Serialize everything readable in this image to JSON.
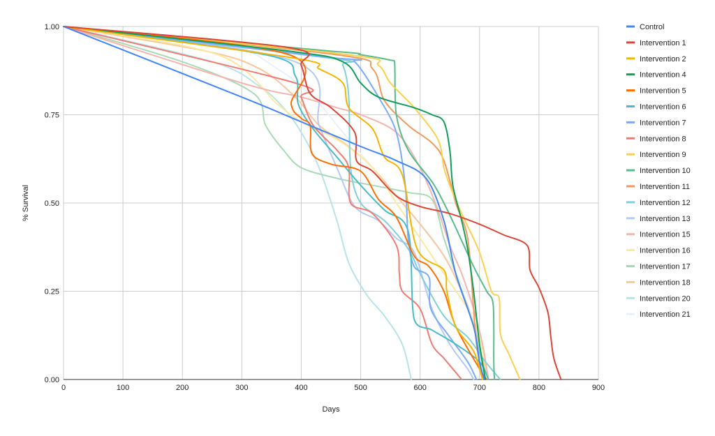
{
  "chart_data": {
    "type": "line",
    "title": "",
    "xlabel": "Days",
    "ylabel": "% Survival",
    "xlim": [
      0,
      900
    ],
    "ylim": [
      0,
      1
    ],
    "x_ticks": [
      0,
      100,
      200,
      300,
      400,
      500,
      600,
      700,
      800,
      900
    ],
    "x_tick_labels": [
      "0",
      "100",
      "200",
      "300",
      "400",
      "500",
      "600",
      "700",
      "800",
      "900"
    ],
    "y_ticks": [
      0,
      0.25,
      0.5,
      0.75,
      1
    ],
    "y_tick_labels": [
      "0.00",
      "0.25",
      "0.50",
      "0.75",
      "1.00"
    ],
    "grid": true,
    "legend_position": "right",
    "series": [
      {
        "name": "Control",
        "color": "#4285f4",
        "points": [
          [
            0,
            1
          ],
          [
            300,
            0.8
          ],
          [
            400,
            0.73
          ],
          [
            500,
            0.66
          ],
          [
            560,
            0.62
          ],
          [
            610,
            0.57
          ],
          [
            640,
            0.45
          ],
          [
            660,
            0.3
          ],
          [
            690,
            0.15
          ],
          [
            700,
            0.05
          ],
          [
            708,
            0
          ]
        ]
      },
      {
        "name": "Intervention 1",
        "color": "#db4437",
        "points": [
          [
            0,
            1
          ],
          [
            380,
            0.94
          ],
          [
            400,
            0.89
          ],
          [
            415,
            0.81
          ],
          [
            450,
            0.77
          ],
          [
            490,
            0.7
          ],
          [
            493,
            0.62
          ],
          [
            520,
            0.59
          ],
          [
            560,
            0.52
          ],
          [
            600,
            0.49
          ],
          [
            650,
            0.47
          ],
          [
            700,
            0.44
          ],
          [
            740,
            0.41
          ],
          [
            780,
            0.38
          ],
          [
            785,
            0.31
          ],
          [
            800,
            0.26
          ],
          [
            815,
            0.19
          ],
          [
            820,
            0.12
          ],
          [
            825,
            0.06
          ],
          [
            837,
            0
          ]
        ]
      },
      {
        "name": "Intervention 2",
        "color": "#f4b400",
        "points": [
          [
            0,
            1
          ],
          [
            390,
            0.91
          ],
          [
            430,
            0.88
          ],
          [
            470,
            0.84
          ],
          [
            480,
            0.77
          ],
          [
            520,
            0.71
          ],
          [
            540,
            0.63
          ],
          [
            570,
            0.58
          ],
          [
            595,
            0.37
          ],
          [
            640,
            0.31
          ],
          [
            645,
            0.25
          ],
          [
            660,
            0.15
          ],
          [
            690,
            0.08
          ],
          [
            705,
            0
          ]
        ]
      },
      {
        "name": "Intervention 4",
        "color": "#0f9d58",
        "points": [
          [
            0,
            1
          ],
          [
            380,
            0.93
          ],
          [
            470,
            0.9
          ],
          [
            500,
            0.84
          ],
          [
            530,
            0.8
          ],
          [
            590,
            0.77
          ],
          [
            620,
            0.75
          ],
          [
            640,
            0.73
          ],
          [
            650,
            0.65
          ],
          [
            655,
            0.55
          ],
          [
            670,
            0.45
          ],
          [
            680,
            0.37
          ],
          [
            690,
            0.25
          ],
          [
            700,
            0.1
          ],
          [
            710,
            0
          ]
        ]
      },
      {
        "name": "Intervention 5",
        "color": "#ff6d00",
        "points": [
          [
            0,
            1
          ],
          [
            380,
            0.92
          ],
          [
            383,
            0.78
          ],
          [
            400,
            0.74
          ],
          [
            415,
            0.72
          ],
          [
            418,
            0.64
          ],
          [
            450,
            0.61
          ],
          [
            500,
            0.59
          ],
          [
            530,
            0.51
          ],
          [
            560,
            0.46
          ],
          [
            590,
            0.35
          ],
          [
            615,
            0.32
          ],
          [
            640,
            0.25
          ],
          [
            660,
            0.15
          ],
          [
            700,
            0.03
          ],
          [
            712,
            0
          ]
        ]
      },
      {
        "name": "Intervention 6",
        "color": "#46bdc6",
        "points": [
          [
            0,
            1
          ],
          [
            340,
            0.92
          ],
          [
            390,
            0.86
          ],
          [
            395,
            0.78
          ],
          [
            420,
            0.71
          ],
          [
            460,
            0.63
          ],
          [
            500,
            0.55
          ],
          [
            540,
            0.48
          ],
          [
            580,
            0.42
          ],
          [
            590,
            0.17
          ],
          [
            620,
            0.14
          ],
          [
            660,
            0.1
          ],
          [
            700,
            0.05
          ],
          [
            715,
            0
          ]
        ]
      },
      {
        "name": "Intervention 7",
        "color": "#7baaf7",
        "points": [
          [
            0,
            1
          ],
          [
            460,
            0.91
          ],
          [
            490,
            0.9
          ],
          [
            530,
            0.8
          ],
          [
            560,
            0.7
          ],
          [
            575,
            0.55
          ],
          [
            580,
            0.4
          ],
          [
            590,
            0.32
          ],
          [
            615,
            0.29
          ],
          [
            618,
            0.2
          ],
          [
            650,
            0.12
          ],
          [
            680,
            0.05
          ],
          [
            695,
            0
          ]
        ]
      },
      {
        "name": "Intervention 8",
        "color": "#f07b72",
        "points": [
          [
            0,
            1
          ],
          [
            390,
            0.84
          ],
          [
            400,
            0.8
          ],
          [
            420,
            0.72
          ],
          [
            460,
            0.65
          ],
          [
            480,
            0.6
          ],
          [
            483,
            0.5
          ],
          [
            520,
            0.47
          ],
          [
            560,
            0.38
          ],
          [
            565,
            0.3
          ],
          [
            570,
            0.25
          ],
          [
            600,
            0.2
          ],
          [
            620,
            0.1
          ],
          [
            640,
            0.06
          ],
          [
            670,
            0
          ]
        ]
      },
      {
        "name": "Intervention 9",
        "color": "#fcd04f",
        "points": [
          [
            0,
            1
          ],
          [
            480,
            0.92
          ],
          [
            530,
            0.89
          ],
          [
            550,
            0.84
          ],
          [
            590,
            0.77
          ],
          [
            630,
            0.68
          ],
          [
            640,
            0.6
          ],
          [
            650,
            0.55
          ],
          [
            670,
            0.47
          ],
          [
            700,
            0.36
          ],
          [
            720,
            0.25
          ],
          [
            733,
            0.23
          ],
          [
            735,
            0.13
          ],
          [
            750,
            0.07
          ],
          [
            768,
            0
          ]
        ]
      },
      {
        "name": "Intervention 10",
        "color": "#57bb8a",
        "points": [
          [
            0,
            1
          ],
          [
            450,
            0.93
          ],
          [
            500,
            0.92
          ],
          [
            550,
            0.905
          ],
          [
            557,
            0.9
          ],
          [
            560,
            0.75
          ],
          [
            580,
            0.65
          ],
          [
            620,
            0.56
          ],
          [
            640,
            0.5
          ],
          [
            660,
            0.43
          ],
          [
            690,
            0.32
          ],
          [
            712,
            0.25
          ],
          [
            723,
            0.21
          ],
          [
            724,
            0.05
          ],
          [
            725,
            0
          ]
        ]
      },
      {
        "name": "Intervention 11",
        "color": "#f29a5e",
        "points": [
          [
            0,
            1
          ],
          [
            460,
            0.92
          ],
          [
            520,
            0.88
          ],
          [
            540,
            0.79
          ],
          [
            580,
            0.72
          ],
          [
            620,
            0.67
          ],
          [
            640,
            0.62
          ],
          [
            660,
            0.5
          ],
          [
            680,
            0.4
          ],
          [
            690,
            0.2
          ],
          [
            695,
            0.1
          ],
          [
            705,
            0
          ]
        ]
      },
      {
        "name": "Intervention 12",
        "color": "#7fd0d8",
        "points": [
          [
            0,
            1
          ],
          [
            450,
            0.91
          ],
          [
            470,
            0.89
          ],
          [
            480,
            0.8
          ],
          [
            483,
            0.6
          ],
          [
            500,
            0.5
          ],
          [
            540,
            0.45
          ],
          [
            580,
            0.37
          ],
          [
            600,
            0.3
          ],
          [
            640,
            0.18
          ],
          [
            680,
            0.12
          ],
          [
            710,
            0.05
          ],
          [
            735,
            0
          ]
        ]
      },
      {
        "name": "Intervention 13",
        "color": "#b3c9f7",
        "points": [
          [
            0,
            1
          ],
          [
            390,
            0.9
          ],
          [
            430,
            0.72
          ],
          [
            460,
            0.6
          ],
          [
            490,
            0.49
          ],
          [
            530,
            0.45
          ],
          [
            560,
            0.4
          ],
          [
            590,
            0.36
          ],
          [
            620,
            0.2
          ],
          [
            650,
            0.1
          ],
          [
            680,
            0.03
          ],
          [
            690,
            0
          ]
        ]
      },
      {
        "name": "Intervention 15",
        "color": "#f5b4ae",
        "points": [
          [
            0,
            1
          ],
          [
            300,
            0.84
          ],
          [
            400,
            0.8
          ],
          [
            460,
            0.77
          ],
          [
            500,
            0.75
          ],
          [
            560,
            0.7
          ],
          [
            600,
            0.6
          ],
          [
            630,
            0.48
          ],
          [
            650,
            0.38
          ],
          [
            670,
            0.3
          ],
          [
            690,
            0.2
          ],
          [
            705,
            0.1
          ],
          [
            715,
            0
          ]
        ]
      },
      {
        "name": "Intervention 16",
        "color": "#fce8a0",
        "points": [
          [
            0,
            1
          ],
          [
            260,
            0.92
          ],
          [
            360,
            0.78
          ],
          [
            400,
            0.73
          ],
          [
            460,
            0.68
          ],
          [
            520,
            0.6
          ],
          [
            560,
            0.5
          ],
          [
            600,
            0.4
          ],
          [
            640,
            0.3
          ],
          [
            680,
            0.2
          ],
          [
            700,
            0.12
          ],
          [
            715,
            0
          ]
        ]
      },
      {
        "name": "Intervention 17",
        "color": "#a8dab5",
        "points": [
          [
            0,
            1
          ],
          [
            200,
            0.9
          ],
          [
            320,
            0.81
          ],
          [
            340,
            0.72
          ],
          [
            370,
            0.65
          ],
          [
            400,
            0.6
          ],
          [
            460,
            0.57
          ],
          [
            520,
            0.55
          ],
          [
            580,
            0.53
          ],
          [
            620,
            0.51
          ],
          [
            640,
            0.4
          ],
          [
            660,
            0.3
          ],
          [
            690,
            0.15
          ],
          [
            710,
            0
          ]
        ]
      },
      {
        "name": "Intervention 18",
        "color": "#f8c89d",
        "points": [
          [
            0,
            1
          ],
          [
            240,
            0.93
          ],
          [
            330,
            0.88
          ],
          [
            390,
            0.8
          ],
          [
            430,
            0.72
          ],
          [
            480,
            0.66
          ],
          [
            520,
            0.6
          ],
          [
            560,
            0.52
          ],
          [
            600,
            0.44
          ],
          [
            640,
            0.35
          ],
          [
            670,
            0.25
          ],
          [
            690,
            0.16
          ],
          [
            705,
            0.06
          ],
          [
            715,
            0
          ]
        ]
      },
      {
        "name": "Intervention 20",
        "color": "#b7e4e7",
        "points": [
          [
            0,
            1
          ],
          [
            250,
            0.9
          ],
          [
            330,
            0.83
          ],
          [
            370,
            0.77
          ],
          [
            400,
            0.7
          ],
          [
            430,
            0.6
          ],
          [
            460,
            0.45
          ],
          [
            480,
            0.33
          ],
          [
            510,
            0.24
          ],
          [
            540,
            0.18
          ],
          [
            570,
            0.1
          ],
          [
            585,
            0
          ]
        ]
      },
      {
        "name": "Intervention 21",
        "color": "#e8f0fe",
        "points": [
          [
            0,
            1
          ],
          [
            270,
            0.95
          ],
          [
            360,
            0.88
          ],
          [
            420,
            0.8
          ],
          [
            470,
            0.7
          ],
          [
            520,
            0.6
          ],
          [
            570,
            0.5
          ],
          [
            620,
            0.4
          ],
          [
            660,
            0.3
          ],
          [
            690,
            0.2
          ],
          [
            705,
            0.1
          ],
          [
            715,
            0
          ]
        ]
      }
    ]
  }
}
